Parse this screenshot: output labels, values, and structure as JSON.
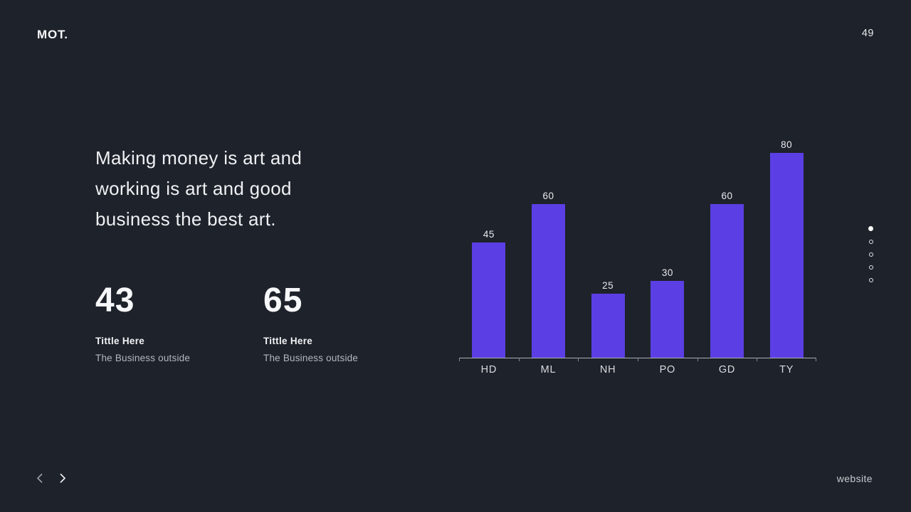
{
  "header": {
    "logo": "MOT.",
    "page_number": "49"
  },
  "quote": {
    "lines": [
      "Making money is art and",
      "working is art and good",
      "business the best art."
    ]
  },
  "stats": [
    {
      "value": "43",
      "title": "Tittle Here",
      "subtitle": "The Business outside"
    },
    {
      "value": "65",
      "title": "Tittle Here",
      "subtitle": "The Business outside"
    }
  ],
  "chart_data": {
    "type": "bar",
    "categories": [
      "HD",
      "ML",
      "NH",
      "PO",
      "GD",
      "TY"
    ],
    "values": [
      45,
      60,
      25,
      30,
      60,
      80
    ],
    "title": "",
    "xlabel": "",
    "ylabel": "",
    "ylim": [
      0,
      87
    ],
    "grid": false,
    "legend": false,
    "value_labels_shown": true,
    "bar_color": "#5b3fe4",
    "axis_color": "#a9adb4"
  },
  "pagination": {
    "total_dots": 5,
    "active_index": 0
  },
  "footer": {
    "prev_icon": "chevron-left",
    "next_icon": "chevron-right",
    "link": "website"
  },
  "colors": {
    "background": "#1e222a",
    "accent": "#5b3fe4",
    "text_primary": "#f2f3f5",
    "text_secondary": "#b3b8bf"
  }
}
